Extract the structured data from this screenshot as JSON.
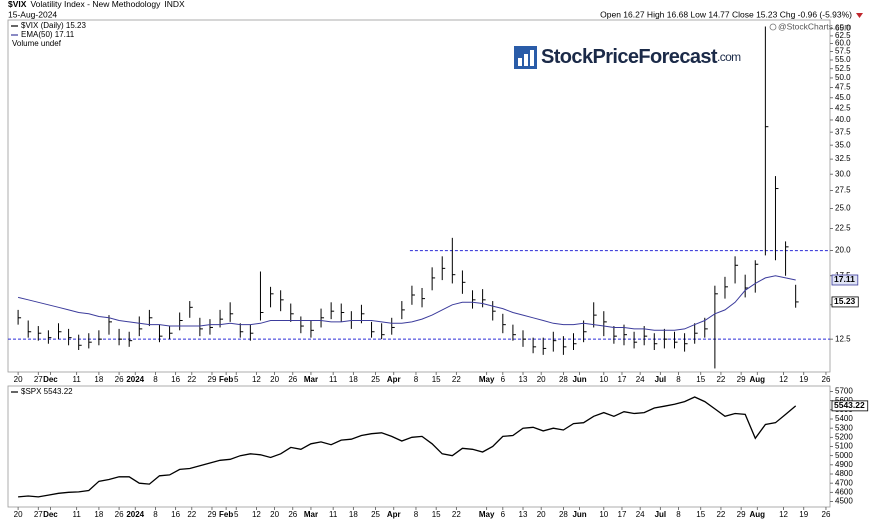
{
  "chart_data": [
    {
      "type": "ohlc",
      "title": "$VIX",
      "subtitle": "Volatility Index - New Methodology",
      "exchange": "INDX",
      "date": "15-Aug-2024",
      "quote": "Open 16.27  High 16.68  Low 14.77  Close 15.23  Chg -0.96 (-5.93%)",
      "credit": "@StockCharts.com",
      "watermark": "StockPriceForecast",
      "watermark_suffix": ".com",
      "legend_note": "Volume undef",
      "log": true,
      "xlim": [
        -0.5,
        40.2
      ],
      "ylim": [
        10.5,
        68
      ],
      "yticks": [
        12.5,
        {
          "value": 15,
          "label": "15.0"
        },
        17.5,
        {
          "value": 20,
          "label": "20.0"
        },
        22.5,
        {
          "value": 25,
          "label": "25.0"
        },
        27.5,
        {
          "value": 30,
          "label": "30.0"
        },
        32.5,
        {
          "value": 35,
          "label": "35.0"
        },
        37.5,
        {
          "value": 40,
          "label": "40.0"
        },
        42.5,
        {
          "value": 45,
          "label": "45.0"
        },
        47.5,
        {
          "value": 50,
          "label": "50.0"
        },
        52.5,
        {
          "value": 55,
          "label": "55.0"
        },
        57.5,
        {
          "value": 60,
          "label": "60.0"
        },
        62.5,
        {
          "value": 65,
          "label": "65.0"
        }
      ],
      "xticks": [
        {
          "value": 0,
          "label": "20"
        },
        {
          "value": 1,
          "label": "27"
        },
        {
          "value": 1.6,
          "label": "Dec"
        },
        {
          "value": 2.9,
          "label": "11"
        },
        {
          "value": 4,
          "label": "18"
        },
        {
          "value": 5,
          "label": "26"
        },
        {
          "value": 5.8,
          "label": "2024"
        },
        {
          "value": 6.8,
          "label": "8"
        },
        {
          "value": 7.8,
          "label": "16"
        },
        {
          "value": 8.6,
          "label": "22"
        },
        {
          "value": 9.6,
          "label": "29"
        },
        {
          "value": 10.3,
          "label": "Feb"
        },
        {
          "value": 10.8,
          "label": "5"
        },
        {
          "value": 11.8,
          "label": "12"
        },
        {
          "value": 12.7,
          "label": "20"
        },
        {
          "value": 13.6,
          "label": "26"
        },
        {
          "value": 14.5,
          "label": "Mar"
        },
        {
          "value": 15.6,
          "label": "11"
        },
        {
          "value": 16.6,
          "label": "18"
        },
        {
          "value": 17.7,
          "label": "25"
        },
        {
          "value": 18.6,
          "label": "Apr"
        },
        {
          "value": 19.7,
          "label": "8"
        },
        {
          "value": 20.7,
          "label": "15"
        },
        {
          "value": 21.7,
          "label": "22"
        },
        {
          "value": 23.2,
          "label": "May"
        },
        {
          "value": 24,
          "label": "6"
        },
        {
          "value": 25,
          "label": "13"
        },
        {
          "value": 25.9,
          "label": "20"
        },
        {
          "value": 27,
          "label": "28"
        },
        {
          "value": 27.8,
          "label": "Jun"
        },
        {
          "value": 29,
          "label": "10"
        },
        {
          "value": 29.9,
          "label": "17"
        },
        {
          "value": 30.8,
          "label": "24"
        },
        {
          "value": 31.8,
          "label": "Jul"
        },
        {
          "value": 32.7,
          "label": "8"
        },
        {
          "value": 33.8,
          "label": "15"
        },
        {
          "value": 34.8,
          "label": "22"
        },
        {
          "value": 35.8,
          "label": "29"
        },
        {
          "value": 36.6,
          "label": "Aug"
        },
        {
          "value": 37.9,
          "label": "12"
        },
        {
          "value": 38.9,
          "label": "19"
        },
        {
          "value": 40,
          "label": "26"
        }
      ],
      "hlines": [
        {
          "value": 20,
          "x_from": 19.4,
          "color": "#2b2bd6"
        },
        {
          "value": 12.5,
          "color": "#2b2bd6"
        }
      ],
      "x": [
        0,
        0.5,
        1,
        1.5,
        2,
        2.5,
        3,
        3.5,
        4,
        4.5,
        5,
        5.5,
        6,
        6.5,
        7,
        7.5,
        8,
        8.5,
        9,
        9.5,
        10,
        10.5,
        11,
        11.5,
        12,
        12.5,
        13,
        13.5,
        14,
        14.5,
        15,
        15.5,
        16,
        16.5,
        17,
        17.5,
        18,
        18.5,
        19,
        19.5,
        20,
        20.5,
        21,
        21.5,
        22,
        22.5,
        23,
        23.5,
        24,
        24.5,
        25,
        25.5,
        26,
        26.5,
        27,
        27.5,
        28,
        28.5,
        29,
        29.5,
        30,
        30.5,
        31,
        31.5,
        32,
        32.5,
        33,
        33.5,
        34,
        34.5,
        35,
        35.5,
        36,
        36.5,
        37,
        37.5,
        38,
        38.5
      ],
      "series": [
        {
          "name": "$VIX (Daily) 15.23",
          "color": "#000000",
          "high": [
            14.6,
            13.8,
            13.4,
            13.1,
            13.6,
            13.2,
            12.8,
            12.9,
            13.1,
            14.2,
            13.2,
            13.0,
            14.1,
            14.6,
            13.5,
            13.4,
            14.4,
            15.3,
            14.0,
            13.9,
            14.6,
            15.2,
            13.6,
            13.5,
            17.9,
            16.5,
            16.2,
            15.1,
            14.1,
            13.8,
            14.7,
            15.2,
            15.1,
            14.5,
            15.0,
            13.7,
            13.6,
            14.0,
            15.3,
            16.6,
            16.4,
            18.3,
            19.4,
            21.4,
            18.0,
            16.2,
            16.3,
            15.3,
            14.3,
            13.5,
            13.1,
            12.6,
            12.6,
            13.0,
            12.7,
            12.9,
            13.8,
            15.2,
            14.5,
            13.4,
            13.5,
            13.0,
            13.4,
            12.9,
            13.2,
            13.0,
            12.9,
            13.6,
            14.0,
            16.6,
            17.4,
            19.4,
            17.6,
            19.0,
            65.7,
            29.7,
            21.0,
            16.68
          ],
          "low": [
            13.5,
            12.6,
            12.4,
            12.2,
            12.5,
            12.1,
            11.8,
            11.9,
            12.1,
            12.8,
            12.1,
            12.0,
            12.7,
            13.4,
            12.3,
            12.5,
            13.1,
            14.0,
            12.7,
            12.8,
            13.3,
            13.7,
            12.6,
            12.4,
            13.8,
            14.8,
            14.5,
            13.7,
            12.9,
            12.6,
            13.3,
            13.9,
            13.7,
            13.2,
            13.6,
            12.6,
            12.5,
            12.8,
            13.9,
            15.0,
            14.8,
            16.2,
            17.1,
            16.8,
            15.9,
            14.7,
            14.8,
            13.8,
            12.9,
            12.4,
            12.0,
            11.6,
            11.5,
            11.7,
            11.5,
            11.8,
            12.3,
            13.3,
            12.7,
            12.2,
            12.1,
            11.9,
            12.1,
            11.8,
            11.9,
            11.9,
            11.7,
            12.2,
            12.6,
            10.7,
            15.5,
            16.8,
            15.6,
            16.0,
            19.5,
            19.0,
            17.5,
            14.77
          ],
          "close": [
            14.0,
            13.0,
            12.9,
            12.6,
            13.0,
            12.6,
            12.1,
            12.3,
            12.5,
            13.7,
            12.5,
            12.4,
            13.2,
            14.0,
            12.7,
            12.9,
            13.8,
            14.8,
            13.2,
            13.3,
            13.9,
            14.3,
            13.0,
            12.9,
            14.4,
            15.9,
            15.4,
            14.3,
            13.4,
            13.1,
            14.0,
            14.5,
            14.4,
            13.8,
            14.3,
            13.0,
            12.8,
            13.3,
            14.6,
            15.8,
            15.5,
            17.3,
            18.2,
            17.6,
            16.9,
            15.4,
            15.4,
            14.5,
            13.5,
            12.8,
            12.5,
            12.0,
            11.9,
            12.4,
            12.0,
            12.2,
            13.0,
            14.2,
            13.7,
            12.7,
            12.8,
            12.3,
            12.7,
            12.2,
            12.5,
            12.3,
            12.2,
            12.9,
            13.2,
            15.9,
            16.5,
            18.5,
            16.4,
            18.6,
            38.6,
            27.8,
            20.4,
            15.23
          ]
        },
        {
          "name": "EMA(50) 17.11",
          "color": "#3c3c9c",
          "values": [
            15.6,
            15.4,
            15.2,
            15.0,
            14.8,
            14.6,
            14.4,
            14.3,
            14.1,
            14.0,
            13.8,
            13.7,
            13.6,
            13.5,
            13.5,
            13.4,
            13.4,
            13.4,
            13.4,
            13.5,
            13.5,
            13.6,
            13.5,
            13.5,
            13.6,
            13.8,
            13.8,
            13.8,
            13.8,
            13.8,
            13.8,
            13.7,
            13.7,
            13.8,
            13.8,
            13.8,
            13.7,
            13.6,
            13.6,
            13.7,
            13.9,
            14.2,
            14.6,
            15.0,
            15.2,
            15.2,
            15.1,
            14.9,
            14.7,
            14.4,
            14.2,
            14.0,
            13.8,
            13.6,
            13.5,
            13.5,
            13.6,
            13.5,
            13.4,
            13.3,
            13.3,
            13.2,
            13.2,
            13.1,
            13.1,
            13.1,
            13.2,
            13.5,
            13.8,
            14.3,
            14.6,
            15.2,
            16.2,
            16.8,
            17.3,
            17.5,
            17.3,
            17.11
          ]
        }
      ]
    },
    {
      "type": "line",
      "xlim": [
        -0.5,
        40.2
      ],
      "ylim": [
        4440,
        5760
      ],
      "yticks": [
        4500,
        4600,
        4700,
        4800,
        4900,
        5000,
        5100,
        5200,
        5300,
        5400,
        5500,
        5600,
        5700
      ],
      "xticks": [
        {
          "value": 0,
          "label": "20"
        },
        {
          "value": 1,
          "label": "27"
        },
        {
          "value": 1.6,
          "label": "Dec"
        },
        {
          "value": 2.9,
          "label": "11"
        },
        {
          "value": 4,
          "label": "18"
        },
        {
          "value": 5,
          "label": "26"
        },
        {
          "value": 5.8,
          "label": "2024"
        },
        {
          "value": 6.8,
          "label": "8"
        },
        {
          "value": 7.8,
          "label": "16"
        },
        {
          "value": 8.6,
          "label": "22"
        },
        {
          "value": 9.6,
          "label": "29"
        },
        {
          "value": 10.3,
          "label": "Feb"
        },
        {
          "value": 10.8,
          "label": "5"
        },
        {
          "value": 11.8,
          "label": "12"
        },
        {
          "value": 12.7,
          "label": "20"
        },
        {
          "value": 13.6,
          "label": "26"
        },
        {
          "value": 14.5,
          "label": "Mar"
        },
        {
          "value": 15.6,
          "label": "11"
        },
        {
          "value": 16.6,
          "label": "18"
        },
        {
          "value": 17.7,
          "label": "25"
        },
        {
          "value": 18.6,
          "label": "Apr"
        },
        {
          "value": 19.7,
          "label": "8"
        },
        {
          "value": 20.7,
          "label": "15"
        },
        {
          "value": 21.7,
          "label": "22"
        },
        {
          "value": 23.2,
          "label": "May"
        },
        {
          "value": 24,
          "label": "6"
        },
        {
          "value": 25,
          "label": "13"
        },
        {
          "value": 25.9,
          "label": "20"
        },
        {
          "value": 27,
          "label": "28"
        },
        {
          "value": 27.8,
          "label": "Jun"
        },
        {
          "value": 29,
          "label": "10"
        },
        {
          "value": 29.9,
          "label": "17"
        },
        {
          "value": 30.8,
          "label": "24"
        },
        {
          "value": 31.8,
          "label": "Jul"
        },
        {
          "value": 32.7,
          "label": "8"
        },
        {
          "value": 33.8,
          "label": "15"
        },
        {
          "value": 34.8,
          "label": "22"
        },
        {
          "value": 35.8,
          "label": "29"
        },
        {
          "value": 36.6,
          "label": "Aug"
        },
        {
          "value": 37.9,
          "label": "12"
        },
        {
          "value": 38.9,
          "label": "19"
        },
        {
          "value": 40,
          "label": "26"
        }
      ],
      "x": [
        0,
        0.5,
        1,
        1.5,
        2,
        2.5,
        3,
        3.5,
        4,
        4.5,
        5,
        5.5,
        6,
        6.5,
        7,
        7.5,
        8,
        8.5,
        9,
        9.5,
        10,
        10.5,
        11,
        11.5,
        12,
        12.5,
        13,
        13.5,
        14,
        14.5,
        15,
        15.5,
        16,
        16.5,
        17,
        17.5,
        18,
        18.5,
        19,
        19.5,
        20,
        20.5,
        21,
        21.5,
        22,
        22.5,
        23,
        23.5,
        24,
        24.5,
        25,
        25.5,
        26,
        26.5,
        27,
        27.5,
        28,
        28.5,
        29,
        29.5,
        30,
        30.5,
        31,
        31.5,
        32,
        32.5,
        33,
        33.5,
        34,
        34.5,
        35,
        35.5,
        36,
        36.5,
        37,
        37.5,
        38,
        38.5
      ],
      "series": [
        {
          "name": "$SPX 5543.22",
          "color": "#000000",
          "values": [
            4550,
            4560,
            4550,
            4570,
            4590,
            4600,
            4605,
            4620,
            4720,
            4740,
            4770,
            4770,
            4700,
            4690,
            4780,
            4790,
            4850,
            4860,
            4890,
            4920,
            4950,
            4960,
            5000,
            5020,
            5010,
            4980,
            5020,
            5090,
            5070,
            5130,
            5150,
            5120,
            5170,
            5180,
            5220,
            5240,
            5250,
            5210,
            5160,
            5200,
            5210,
            5130,
            5020,
            5000,
            5080,
            5070,
            5040,
            5100,
            5210,
            5220,
            5300,
            5310,
            5270,
            5300,
            5280,
            5350,
            5360,
            5430,
            5470,
            5430,
            5480,
            5460,
            5470,
            5520,
            5540,
            5560,
            5590,
            5640,
            5590,
            5510,
            5430,
            5460,
            5450,
            5190,
            5340,
            5360,
            5450,
            5543.22
          ]
        }
      ]
    }
  ]
}
